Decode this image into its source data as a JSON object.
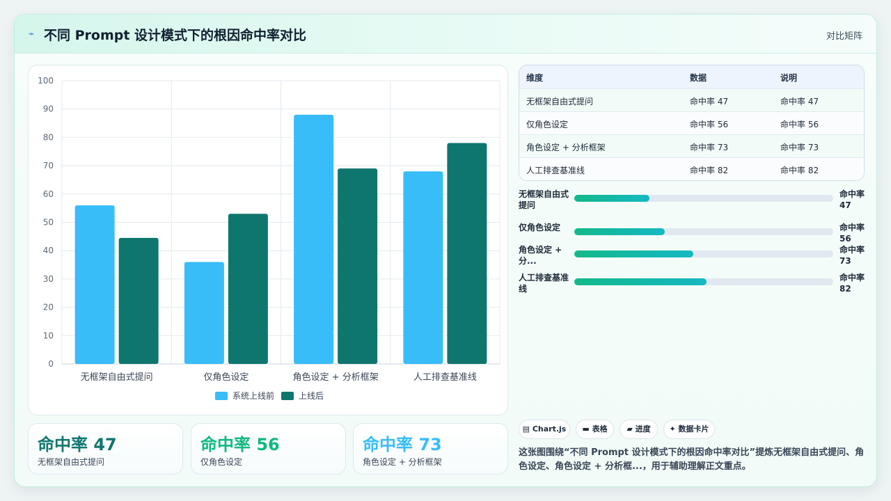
{
  "header": {
    "icon": "lightning-icon",
    "title": "不同 Prompt 设计模式下的根因命中率对比",
    "right_label": "对比矩阵"
  },
  "chart_data": {
    "type": "bar",
    "categories": [
      "无框架自由式提问",
      "仅角色设定",
      "角色设定 + 分析框架",
      "人工排查基准线"
    ],
    "series": [
      {
        "name": "系统上线前",
        "color": "#38bdf8",
        "values": [
          56,
          36,
          88,
          68
        ]
      },
      {
        "name": "上线后",
        "color": "#0f766e",
        "values": [
          44.5,
          53,
          69,
          78
        ]
      }
    ],
    "ylim": [
      0,
      100
    ],
    "yticks": [
      0,
      10,
      20,
      30,
      40,
      50,
      60,
      70,
      80,
      90,
      100
    ],
    "grid": true,
    "legend": "bottom-center"
  },
  "stats": [
    {
      "value": "命中率 47",
      "label": "无框架自由式提问",
      "color": "#0f766e"
    },
    {
      "value": "命中率 56",
      "label": "仅角色设定",
      "color": "#10b981"
    },
    {
      "value": "命中率 73",
      "label": "角色设定 + 分析框架",
      "color": "#38bdf8"
    }
  ],
  "table": {
    "headers": [
      "维度",
      "数据",
      "说明"
    ],
    "rows": [
      [
        "无框架自由式提问",
        "命中率 47",
        "命中率 47"
      ],
      [
        "仅角色设定",
        "命中率 56",
        "命中率 56"
      ],
      [
        "角色设定 + 分析框架",
        "命中率 73",
        "命中率 73"
      ],
      [
        "人工排查基准线",
        "命中率 82",
        "命中率 82"
      ]
    ]
  },
  "progress": [
    {
      "label_line1": "无框架自由式",
      "label_line2": "提问",
      "value_line1": "命中率",
      "value_line2": "47",
      "fraction": 0.29
    },
    {
      "label_line1": "仅角色设定",
      "label_line2": "",
      "value_line1": "命中率",
      "value_line2": "56",
      "fraction": 0.35
    },
    {
      "label_line1": "角色设定 +",
      "label_line2": "分...",
      "value_line1": "命中率",
      "value_line2": "73",
      "fraction": 0.46
    },
    {
      "label_line1": "人工排查基准",
      "label_line2": "线",
      "value_line1": "命中率",
      "value_line2": "82",
      "fraction": 0.51
    }
  ],
  "chips": [
    {
      "icon": "chart-icon",
      "label": "▤ Chart.js"
    },
    {
      "icon": "table-icon",
      "label": "▬ 表格"
    },
    {
      "icon": "progress-icon",
      "label": "▰ 进度"
    },
    {
      "icon": "sparkle-icon",
      "label": "✦ 数据卡片"
    }
  ],
  "note": "这张图围绕“不同 Prompt 设计模式下的根因命中率对比”提炼无框架自由式提问、角色设定、角色设定 + 分析框...，用于辅助理解正文重点。"
}
